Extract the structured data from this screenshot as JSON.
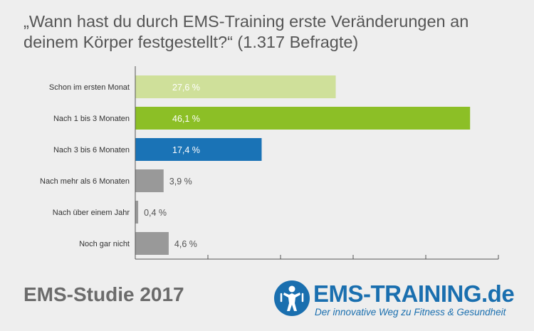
{
  "title": "„Wann hast du durch EMS-Training erste Veränderungen an deinem Körper festgestellt?“ (1.317 Befragte)",
  "footer": {
    "study_label": "EMS-Studie 2017",
    "logo_brand": "EMS-TRAINING.de",
    "logo_tagline": "Der innovative Weg zu Fitness & Gesundheit"
  },
  "chart_data": {
    "type": "bar",
    "orientation": "horizontal",
    "categories": [
      "Schon im ersten Monat",
      "Nach 1 bis 3 Monaten",
      "Nach 3 bis 6 Monaten",
      "Nach mehr als 6 Monaten",
      "Nach über einem Jahr",
      "Noch gar nicht"
    ],
    "values": [
      27.6,
      46.1,
      17.4,
      3.9,
      0.4,
      4.6
    ],
    "value_labels": [
      "27,6 %",
      "46,1 %",
      "17,4 %",
      "3,9 %",
      "0,4 %",
      "4,6 %"
    ],
    "colors": [
      "#cfe09a",
      "#8cbf26",
      "#1a73b6",
      "#999999",
      "#999999",
      "#999999"
    ],
    "xlim": [
      0,
      50
    ],
    "grid": false,
    "legend": "none"
  }
}
